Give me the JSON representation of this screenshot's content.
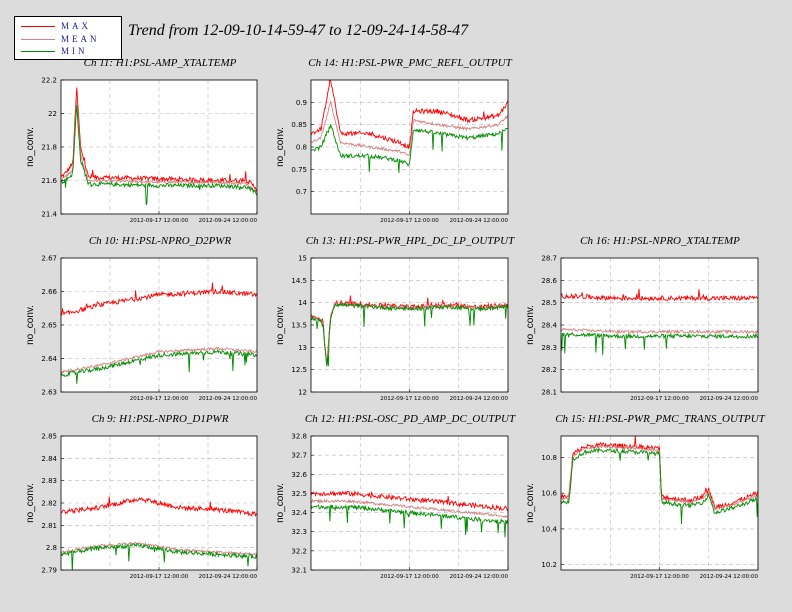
{
  "title": "Trend from 12-09-10-14-59-47 to 12-09-24-14-58-47",
  "legend": [
    {
      "label": "MAX",
      "color": "#ff0000"
    },
    {
      "label": "MEAN",
      "color": "#d38080"
    },
    {
      "label": "MIN",
      "color": "#008c00"
    }
  ],
  "colors": {
    "max": "#ff0000",
    "mean": "#d38080",
    "min": "#008c00"
  },
  "chart_data": [
    {
      "type": "line",
      "title": "Ch 11: H1:PSL-AMP_XTALTEMP",
      "ylabel": "no_conv.",
      "xlabel": "",
      "x_tick_labels": [
        "2012-09-17 12:00:00",
        "2012-09-24 12:00:00"
      ],
      "ylim": [
        21.4,
        22.2
      ],
      "yticks": [
        21.4,
        21.6,
        21.8,
        22,
        22.2
      ],
      "grid": true,
      "series": [
        {
          "name": "MAX",
          "points": [
            [
              0,
              21.62
            ],
            [
              0.02,
              21.64
            ],
            [
              0.06,
              21.7
            ],
            [
              0.08,
              22.16
            ],
            [
              0.1,
              21.8
            ],
            [
              0.14,
              21.62
            ],
            [
              0.5,
              21.61
            ],
            [
              0.8,
              21.6
            ],
            [
              0.95,
              21.6
            ],
            [
              1,
              21.55
            ]
          ]
        },
        {
          "name": "MEAN",
          "points": [
            [
              0,
              21.6
            ],
            [
              0.02,
              21.62
            ],
            [
              0.06,
              21.66
            ],
            [
              0.08,
              22.1
            ],
            [
              0.1,
              21.75
            ],
            [
              0.14,
              21.6
            ],
            [
              0.5,
              21.59
            ],
            [
              0.8,
              21.59
            ],
            [
              0.95,
              21.58
            ],
            [
              1,
              21.53
            ]
          ]
        },
        {
          "name": "MIN",
          "points": [
            [
              0,
              21.59
            ],
            [
              0.02,
              21.6
            ],
            [
              0.06,
              21.64
            ],
            [
              0.08,
              22.06
            ],
            [
              0.1,
              21.72
            ],
            [
              0.14,
              21.58
            ],
            [
              0.5,
              21.57
            ],
            [
              0.8,
              21.57
            ],
            [
              0.95,
              21.56
            ],
            [
              1,
              21.52
            ]
          ]
        }
      ]
    },
    {
      "type": "line",
      "title": "Ch 14: H1:PSL-PWR_PMC_REFL_OUTPUT",
      "ylabel": "no_conv.",
      "xlabel": "",
      "x_tick_labels": [
        "2012-09-17 12:00:00",
        "2012-09-24 12:00:00"
      ],
      "ylim": [
        0.65,
        0.95
      ],
      "yticks": [
        0.7,
        0.75,
        0.8,
        0.85,
        0.9
      ],
      "grid": true,
      "series": [
        {
          "name": "MAX",
          "points": [
            [
              0,
              0.83
            ],
            [
              0.05,
              0.84
            ],
            [
              0.1,
              0.95
            ],
            [
              0.15,
              0.83
            ],
            [
              0.3,
              0.83
            ],
            [
              0.45,
              0.81
            ],
            [
              0.5,
              0.8
            ],
            [
              0.52,
              0.88
            ],
            [
              0.65,
              0.88
            ],
            [
              0.8,
              0.86
            ],
            [
              0.95,
              0.87
            ],
            [
              1,
              0.9
            ]
          ]
        },
        {
          "name": "MEAN",
          "points": [
            [
              0,
              0.81
            ],
            [
              0.05,
              0.82
            ],
            [
              0.1,
              0.9
            ],
            [
              0.15,
              0.81
            ],
            [
              0.3,
              0.8
            ],
            [
              0.45,
              0.79
            ],
            [
              0.5,
              0.78
            ],
            [
              0.52,
              0.86
            ],
            [
              0.65,
              0.85
            ],
            [
              0.8,
              0.84
            ],
            [
              0.95,
              0.85
            ],
            [
              1,
              0.87
            ]
          ]
        },
        {
          "name": "MIN",
          "points": [
            [
              0,
              0.79
            ],
            [
              0.05,
              0.8
            ],
            [
              0.1,
              0.85
            ],
            [
              0.15,
              0.78
            ],
            [
              0.3,
              0.78
            ],
            [
              0.45,
              0.77
            ],
            [
              0.5,
              0.76
            ],
            [
              0.52,
              0.84
            ],
            [
              0.65,
              0.83
            ],
            [
              0.8,
              0.82
            ],
            [
              0.95,
              0.83
            ],
            [
              1,
              0.84
            ]
          ]
        }
      ]
    },
    {
      "type": "line",
      "title": "Ch 10: H1:PSL-NPRO_D2PWR",
      "ylabel": "no_conv.",
      "xlabel": "",
      "x_tick_labels": [
        "2012-09-17 12:00:00",
        "2012-09-24 12:00:00"
      ],
      "ylim": [
        2.63,
        2.67
      ],
      "yticks": [
        2.63,
        2.64,
        2.65,
        2.66,
        2.67
      ],
      "grid": true,
      "series": [
        {
          "name": "MAX",
          "points": [
            [
              0,
              2.653
            ],
            [
              0.2,
              2.656
            ],
            [
              0.5,
              2.659
            ],
            [
              0.8,
              2.66
            ],
            [
              1,
              2.659
            ]
          ]
        },
        {
          "name": "MEAN",
          "points": [
            [
              0,
              2.636
            ],
            [
              0.2,
              2.638
            ],
            [
              0.5,
              2.642
            ],
            [
              0.8,
              2.643
            ],
            [
              1,
              2.642
            ]
          ]
        },
        {
          "name": "MIN",
          "points": [
            [
              0,
              2.635
            ],
            [
              0.2,
              2.637
            ],
            [
              0.5,
              2.641
            ],
            [
              0.8,
              2.642
            ],
            [
              1,
              2.641
            ]
          ]
        }
      ]
    },
    {
      "type": "line",
      "title": "Ch 13: H1:PSL-PWR_HPL_DC_LP_OUTPUT",
      "ylabel": "no_conv.",
      "xlabel": "",
      "x_tick_labels": [
        "2012-09-17 12:00:00",
        "2012-09-24 12:00:00"
      ],
      "ylim": [
        12,
        15
      ],
      "yticks": [
        12,
        12.5,
        13,
        13.5,
        14,
        14.5,
        15
      ],
      "grid": true,
      "series": [
        {
          "name": "MAX",
          "points": [
            [
              0,
              13.7
            ],
            [
              0.06,
              13.6
            ],
            [
              0.08,
              12.6
            ],
            [
              0.1,
              13.7
            ],
            [
              0.12,
              14
            ],
            [
              0.3,
              13.95
            ],
            [
              0.5,
              13.9
            ],
            [
              0.7,
              13.95
            ],
            [
              0.85,
              13.9
            ],
            [
              1,
              13.95
            ]
          ]
        },
        {
          "name": "MEAN",
          "points": [
            [
              0,
              13.68
            ],
            [
              0.06,
              13.58
            ],
            [
              0.08,
              12.58
            ],
            [
              0.1,
              13.68
            ],
            [
              0.12,
              13.98
            ],
            [
              0.3,
              13.93
            ],
            [
              0.5,
              13.88
            ],
            [
              0.7,
              13.93
            ],
            [
              0.85,
              13.88
            ],
            [
              1,
              13.93
            ]
          ]
        },
        {
          "name": "MIN",
          "points": [
            [
              0,
              13.66
            ],
            [
              0.06,
              13.56
            ],
            [
              0.08,
              12.56
            ],
            [
              0.1,
              13.66
            ],
            [
              0.12,
              13.96
            ],
            [
              0.3,
              13.91
            ],
            [
              0.5,
              13.86
            ],
            [
              0.7,
              13.91
            ],
            [
              0.85,
              13.86
            ],
            [
              1,
              13.91
            ]
          ]
        }
      ]
    },
    {
      "type": "line",
      "title": "Ch 16: H1:PSL-NPRO_XTALTEMP",
      "ylabel": "no_conv.",
      "xlabel": "",
      "x_tick_labels": [
        "2012-09-17 12:00:00",
        "2012-09-24 12:00:00"
      ],
      "ylim": [
        28.1,
        28.7
      ],
      "yticks": [
        28.1,
        28.2,
        28.3,
        28.4,
        28.5,
        28.6,
        28.7
      ],
      "grid": true,
      "series": [
        {
          "name": "MAX",
          "points": [
            [
              0,
              28.53
            ],
            [
              0.3,
              28.52
            ],
            [
              0.6,
              28.52
            ],
            [
              1,
              28.52
            ]
          ]
        },
        {
          "name": "MEAN",
          "points": [
            [
              0,
              28.38
            ],
            [
              0.3,
              28.37
            ],
            [
              0.6,
              28.37
            ],
            [
              1,
              28.37
            ]
          ]
        },
        {
          "name": "MIN",
          "points": [
            [
              0,
              28.36
            ],
            [
              0.3,
              28.35
            ],
            [
              0.6,
              28.35
            ],
            [
              1,
              28.35
            ]
          ]
        }
      ]
    },
    {
      "type": "line",
      "title": "Ch 9: H1:PSL-NPRO_D1PWR",
      "ylabel": "no_conv.",
      "xlabel": "",
      "x_tick_labels": [
        "2012-09-17 12:00:00",
        "2012-09-24 12:00:00"
      ],
      "ylim": [
        2.79,
        2.85
      ],
      "yticks": [
        2.79,
        2.8,
        2.81,
        2.82,
        2.83,
        2.84,
        2.85
      ],
      "grid": true,
      "series": [
        {
          "name": "MAX",
          "points": [
            [
              0,
              2.816
            ],
            [
              0.2,
              2.818
            ],
            [
              0.4,
              2.822
            ],
            [
              0.6,
              2.818
            ],
            [
              0.8,
              2.817
            ],
            [
              1,
              2.815
            ]
          ]
        },
        {
          "name": "MEAN",
          "points": [
            [
              0,
              2.798
            ],
            [
              0.2,
              2.801
            ],
            [
              0.4,
              2.802
            ],
            [
              0.6,
              2.799
            ],
            [
              0.8,
              2.798
            ],
            [
              1,
              2.797
            ]
          ]
        },
        {
          "name": "MIN",
          "points": [
            [
              0,
              2.797
            ],
            [
              0.2,
              2.8
            ],
            [
              0.4,
              2.801
            ],
            [
              0.6,
              2.798
            ],
            [
              0.8,
              2.797
            ],
            [
              1,
              2.796
            ]
          ]
        }
      ]
    },
    {
      "type": "line",
      "title": "Ch 12: H1:PSL-OSC_PD_AMP_DC_OUTPUT",
      "ylabel": "no_conv.",
      "xlabel": "",
      "x_tick_labels": [
        "2012-09-17 12:00:00",
        "2012-09-24 12:00:00"
      ],
      "ylim": [
        32.1,
        32.8
      ],
      "yticks": [
        32.1,
        32.2,
        32.3,
        32.4,
        32.5,
        32.6,
        32.7,
        32.8
      ],
      "grid": true,
      "series": [
        {
          "name": "MAX",
          "points": [
            [
              0,
              32.5
            ],
            [
              0.2,
              32.5
            ],
            [
              0.4,
              32.48
            ],
            [
              0.6,
              32.46
            ],
            [
              0.8,
              32.44
            ],
            [
              1,
              32.42
            ]
          ]
        },
        {
          "name": "MEAN",
          "points": [
            [
              0,
              32.46
            ],
            [
              0.2,
              32.46
            ],
            [
              0.4,
              32.44
            ],
            [
              0.6,
              32.42
            ],
            [
              0.8,
              32.4
            ],
            [
              1,
              32.38
            ]
          ]
        },
        {
          "name": "MIN",
          "points": [
            [
              0,
              32.43
            ],
            [
              0.2,
              32.43
            ],
            [
              0.4,
              32.41
            ],
            [
              0.6,
              32.39
            ],
            [
              0.8,
              32.37
            ],
            [
              1,
              32.35
            ]
          ]
        }
      ]
    },
    {
      "type": "line",
      "title": "Ch 15: H1:PSL-PWR_PMC_TRANS_OUTPUT",
      "ylabel": "no_conv.",
      "xlabel": "",
      "x_tick_labels": [
        "2012-09-17 12:00:00",
        "2012-09-24 12:00:00"
      ],
      "ylim": [
        10.17,
        10.92
      ],
      "yticks": [
        10.2,
        10.4,
        10.6,
        10.8
      ],
      "grid": true,
      "series": [
        {
          "name": "MAX",
          "points": [
            [
              0,
              10.58
            ],
            [
              0.04,
              10.58
            ],
            [
              0.06,
              10.82
            ],
            [
              0.12,
              10.86
            ],
            [
              0.2,
              10.87
            ],
            [
              0.4,
              10.86
            ],
            [
              0.5,
              10.85
            ],
            [
              0.51,
              10.58
            ],
            [
              0.65,
              10.56
            ],
            [
              0.72,
              10.58
            ],
            [
              0.75,
              10.62
            ],
            [
              0.78,
              10.52
            ],
            [
              0.88,
              10.55
            ],
            [
              1,
              10.6
            ]
          ]
        },
        {
          "name": "MEAN",
          "points": [
            [
              0,
              10.57
            ],
            [
              0.04,
              10.57
            ],
            [
              0.06,
              10.81
            ],
            [
              0.12,
              10.85
            ],
            [
              0.2,
              10.86
            ],
            [
              0.4,
              10.85
            ],
            [
              0.5,
              10.84
            ],
            [
              0.51,
              10.57
            ],
            [
              0.65,
              10.55
            ],
            [
              0.72,
              10.57
            ],
            [
              0.75,
              10.61
            ],
            [
              0.78,
              10.51
            ],
            [
              0.88,
              10.54
            ],
            [
              1,
              10.59
            ]
          ]
        },
        {
          "name": "MIN",
          "points": [
            [
              0,
              10.55
            ],
            [
              0.04,
              10.55
            ],
            [
              0.06,
              10.79
            ],
            [
              0.12,
              10.83
            ],
            [
              0.2,
              10.84
            ],
            [
              0.4,
              10.83
            ],
            [
              0.5,
              10.82
            ],
            [
              0.51,
              10.55
            ],
            [
              0.65,
              10.53
            ],
            [
              0.72,
              10.55
            ],
            [
              0.75,
              10.59
            ],
            [
              0.78,
              10.49
            ],
            [
              0.88,
              10.52
            ],
            [
              1,
              10.57
            ]
          ]
        }
      ]
    }
  ]
}
